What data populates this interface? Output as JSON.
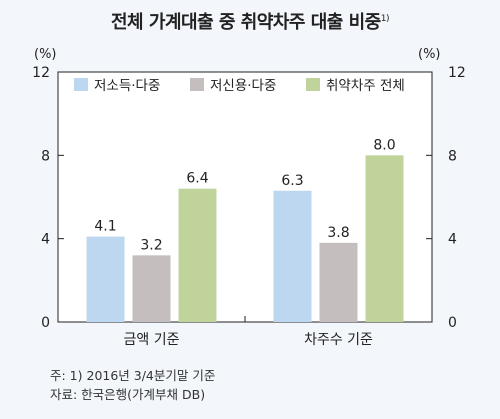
{
  "title": "전체 가계대출 중 취약차주 대출 비중",
  "title_note": "1)",
  "notes": [
    "주: 1) 2016년 3/4분기말 기준",
    "자료: 한국은행(가계부채 DB)"
  ],
  "chart_data": {
    "type": "bar",
    "title": "전체 가계대출 중 취약차주 대출 비중",
    "categories": [
      "금액 기준",
      "차주수 기준"
    ],
    "series": [
      {
        "name": "저소득·다중",
        "color": "#bcd7ef",
        "values": [
          4.1,
          6.3
        ],
        "labels": [
          "4.1",
          "6.3"
        ]
      },
      {
        "name": "저신용·다중",
        "color": "#c4bebe",
        "values": [
          3.2,
          3.8
        ],
        "labels": [
          "3.2",
          "3.8"
        ]
      },
      {
        "name": "취약차주 전체",
        "color": "#bfd39b",
        "values": [
          6.4,
          8.0
        ],
        "labels": [
          "6.4",
          "8.0"
        ]
      }
    ],
    "left_unit": "(%)",
    "right_unit": "(%)",
    "yticks": [
      "0",
      "4",
      "8",
      "12"
    ],
    "ylim": [
      0,
      12
    ],
    "grid": false,
    "legend": "top"
  }
}
